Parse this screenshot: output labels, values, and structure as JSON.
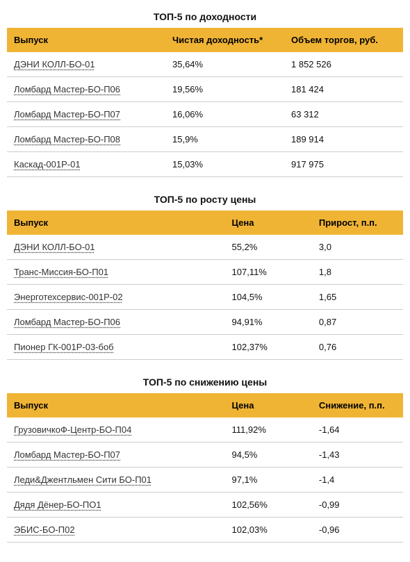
{
  "colors": {
    "header_bg": "#f0b435",
    "border": "#cccccc",
    "text": "#111111",
    "link": "#333333",
    "background": "#ffffff"
  },
  "typography": {
    "font_family": "Arial, Helvetica, sans-serif",
    "base_size": 13,
    "title_size": 14,
    "title_weight": "bold"
  },
  "tables": [
    {
      "title": "ТОП-5 по доходности",
      "col_widths": [
        "40%",
        "30%",
        "30%"
      ],
      "columns": [
        "Выпуск",
        "Чистая доходность*",
        "Объем торгов, руб."
      ],
      "rows": [
        [
          "ДЭНИ КОЛЛ-БО-01",
          "35,64%",
          "1 852 526"
        ],
        [
          "Ломбард Мастер-БО-П06",
          "19,56%",
          "181 424"
        ],
        [
          "Ломбард Мастер-БО-П07",
          "16,06%",
          "63 312"
        ],
        [
          "Ломбард Мастер-БО-П08",
          "15,9%",
          "189 914"
        ],
        [
          "Каскад-001Р-01",
          "15,03%",
          "917 975"
        ]
      ]
    },
    {
      "title": "ТОП-5 по росту цены",
      "col_widths": [
        "55%",
        "22%",
        "23%"
      ],
      "columns": [
        "Выпуск",
        "Цена",
        "Прирост, п.п."
      ],
      "rows": [
        [
          "ДЭНИ КОЛЛ-БО-01",
          "55,2%",
          "3,0"
        ],
        [
          "Транс-Миссия-БО-П01",
          "107,11%",
          "1,8"
        ],
        [
          "Энерготехсервис-001Р-02",
          "104,5%",
          "1,65"
        ],
        [
          "Ломбард Мастер-БО-П06",
          "94,91%",
          "0,87"
        ],
        [
          "Пионер ГК-001Р-03-боб",
          "102,37%",
          "0,76"
        ]
      ]
    },
    {
      "title": "ТОП-5 по снижению цены",
      "col_widths": [
        "55%",
        "22%",
        "23%"
      ],
      "columns": [
        "Выпуск",
        "Цена",
        "Снижение, п.п."
      ],
      "rows": [
        [
          "ГрузовичкоФ-Центр-БО-П04",
          "111,92%",
          "-1,64"
        ],
        [
          "Ломбард Мастер-БО-П07",
          "94,5%",
          "-1,43"
        ],
        [
          "Леди&Джентльмен Сити БО-П01",
          "97,1%",
          "-1,4"
        ],
        [
          "Дядя Дёнер-БО-ПО1",
          "102,56%",
          "-0,99"
        ],
        [
          "ЭБИС-БО-П02",
          "102,03%",
          "-0,96"
        ]
      ]
    }
  ]
}
